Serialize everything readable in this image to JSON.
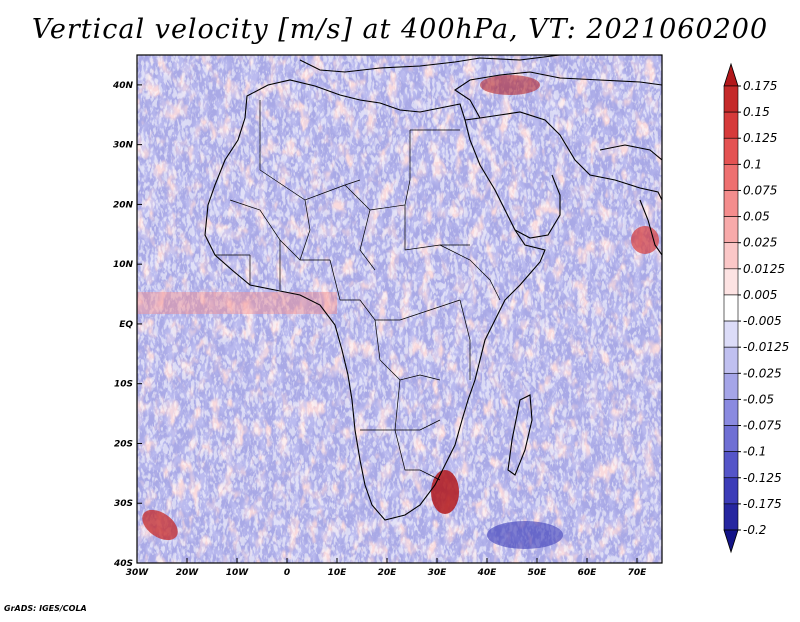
{
  "title": "Vertical velocity [m/s] at 400hPa, VT: 2021060200",
  "credit": "GrADS: IGES/COLA",
  "map": {
    "projection": "latlon",
    "lon_range": [
      -30,
      75
    ],
    "lat_range": [
      -40,
      45
    ],
    "x_ticks": [
      "30W",
      "20W",
      "10W",
      "0",
      "10E",
      "20E",
      "30E",
      "40E",
      "50E",
      "60E",
      "70E"
    ],
    "x_tick_values": [
      -30,
      -20,
      -10,
      0,
      10,
      20,
      30,
      40,
      50,
      60,
      70
    ],
    "y_ticks": [
      "40N",
      "30N",
      "20N",
      "10N",
      "EQ",
      "10S",
      "20S",
      "30S",
      "40S"
    ],
    "y_tick_values": [
      40,
      30,
      20,
      10,
      0,
      -10,
      -20,
      -30,
      -40
    ]
  },
  "colorbar": {
    "labels": [
      "0.175",
      "0.15",
      "0.125",
      "0.1",
      "0.075",
      "0.05",
      "0.025",
      "0.0125",
      "0.005",
      "-0.005",
      "-0.0125",
      "-0.025",
      "-0.05",
      "-0.075",
      "-0.1",
      "-0.125",
      "-0.175",
      "-0.2"
    ],
    "colors": [
      "#b2181b",
      "#c52a2a",
      "#d63a3a",
      "#e45252",
      "#ee7070",
      "#f48d8d",
      "#f8aaaa",
      "#fbc7c7",
      "#fde3e3",
      "#ffffff",
      "#dcdcf8",
      "#c0c0f0",
      "#a5a5e8",
      "#8a8ae0",
      "#6f6fd4",
      "#5555c8",
      "#3c3cb8",
      "#2626a0",
      "#141488"
    ]
  }
}
